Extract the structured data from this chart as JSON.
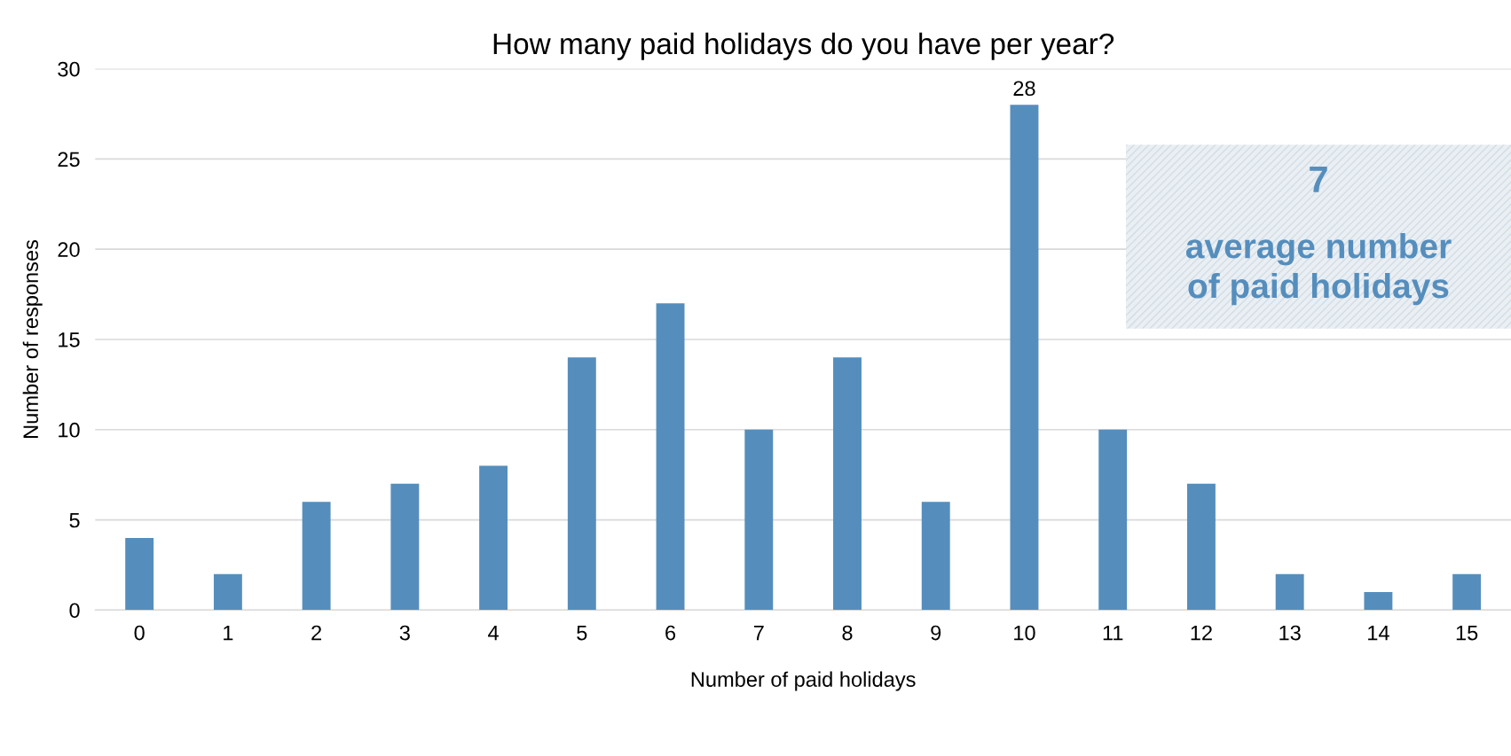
{
  "chart_data": {
    "type": "bar",
    "title": "How many paid holidays do you have per year?",
    "xlabel": "Number of paid holidays",
    "ylabel": "Number of responses",
    "categories": [
      "0",
      "1",
      "2",
      "3",
      "4",
      "5",
      "6",
      "7",
      "8",
      "9",
      "10",
      "11",
      "12",
      "13",
      "14",
      "15"
    ],
    "values": [
      4,
      2,
      6,
      7,
      8,
      14,
      17,
      10,
      14,
      6,
      28,
      10,
      7,
      2,
      1,
      2
    ],
    "value_labels": [
      null,
      null,
      null,
      null,
      null,
      null,
      null,
      null,
      null,
      null,
      "28",
      null,
      null,
      null,
      null,
      null
    ],
    "color": "#558ebd",
    "ylim": [
      0,
      30
    ],
    "yticks": [
      0,
      5,
      10,
      15,
      20,
      25,
      30
    ],
    "grid": "y",
    "legend": false,
    "annotations": [
      "7",
      "average number\nof paid holidays"
    ]
  }
}
